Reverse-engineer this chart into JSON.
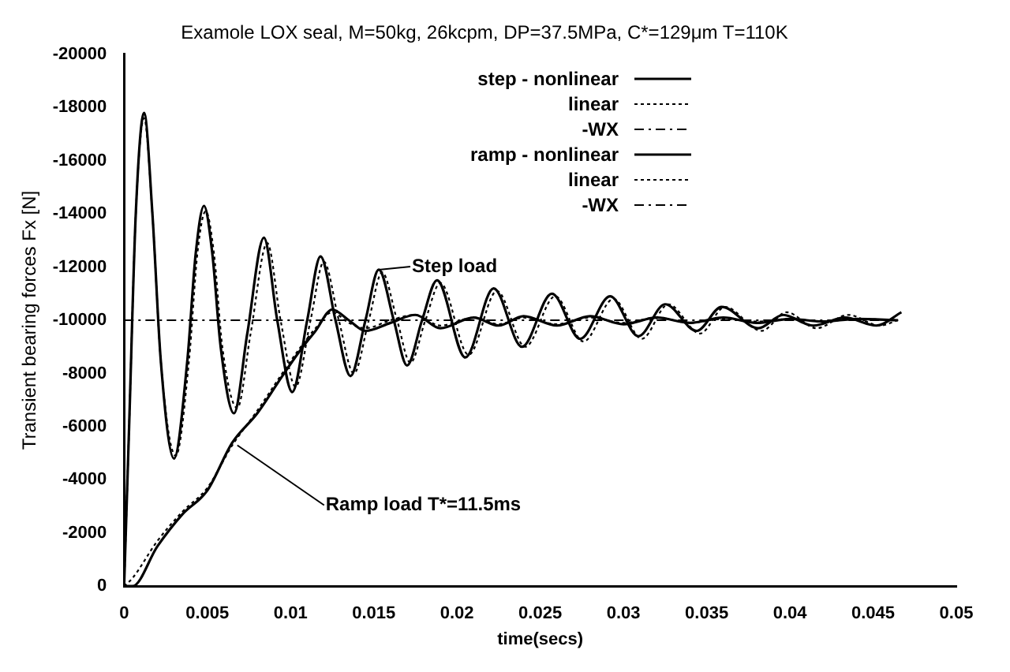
{
  "chart_data": {
    "type": "line",
    "title": "Examole LOX seal, M=50kg, 26kcpm, DP=37.5MPa, C*=129μm T=110K",
    "xlabel": "time(secs)",
    "ylabel": "Transient bearing forces Fx [N]",
    "xlim": [
      0,
      0.05
    ],
    "xticks": [
      0,
      0.005,
      0.01,
      0.015,
      0.02,
      0.025,
      0.03,
      0.035,
      0.04,
      0.045,
      0.05
    ],
    "ylim": [
      0,
      -20000
    ],
    "yticks": [
      -20000,
      -18000,
      -16000,
      -14000,
      -12000,
      -10000,
      -8000,
      -6000,
      -4000,
      -2000,
      0
    ],
    "grid": false,
    "legend": "top right",
    "marker": "none",
    "annotations": [
      {
        "text": "Step load",
        "x": 0.0153,
        "y": -11900
      },
      {
        "text": "Ramp load T*=11.5ms",
        "x": 0.0068,
        "y": -5300
      }
    ],
    "series": [
      {
        "name": "step - nonlinear",
        "color": "#000000",
        "line_style": "solid",
        "x": [
          0,
          0.0003,
          0.0007,
          0.0012,
          0.0017,
          0.0022,
          0.003,
          0.0038,
          0.0043,
          0.0048,
          0.0053,
          0.0058,
          0.0066,
          0.0074,
          0.0084,
          0.0092,
          0.0101,
          0.011,
          0.0118,
          0.0127,
          0.0136,
          0.0145,
          0.0153,
          0.0162,
          0.017,
          0.0179,
          0.0188,
          0.0205,
          0.0222,
          0.0239,
          0.0257,
          0.0274,
          0.0292,
          0.0309,
          0.0325,
          0.0344,
          0.0359,
          0.0381,
          0.0396,
          0.0414,
          0.0433,
          0.0452,
          0.0467
        ],
        "values": [
          0,
          -6000,
          -14000,
          -17800,
          -14000,
          -8500,
          -4800,
          -8500,
          -12500,
          -14300,
          -12500,
          -9000,
          -6500,
          -9500,
          -13100,
          -10000,
          -7300,
          -10000,
          -12400,
          -10000,
          -7900,
          -10000,
          -11900,
          -10000,
          -8300,
          -10000,
          -11500,
          -8600,
          -11200,
          -9000,
          -11000,
          -9300,
          -10900,
          -9400,
          -10600,
          -9600,
          -10500,
          -9700,
          -10200,
          -9800,
          -10100,
          -9800,
          -10300
        ]
      },
      {
        "name": "linear",
        "color": "#000000",
        "line_style": "dotted",
        "x": [
          0,
          0.0003,
          0.0007,
          0.0012,
          0.0017,
          0.0022,
          0.0031,
          0.0039,
          0.0044,
          0.0049,
          0.0054,
          0.0059,
          0.0068,
          0.0076,
          0.0086,
          0.0094,
          0.0103,
          0.0112,
          0.012,
          0.0129,
          0.0138,
          0.0147,
          0.0155,
          0.0164,
          0.0172,
          0.0181,
          0.019,
          0.0207,
          0.0224,
          0.0241,
          0.0259,
          0.0276,
          0.0294,
          0.0311,
          0.0327,
          0.0346,
          0.0361,
          0.0383,
          0.0398,
          0.0416,
          0.0435,
          0.0454,
          0.0465
        ],
        "values": [
          0,
          -6000,
          -14000,
          -17600,
          -14000,
          -8500,
          -4900,
          -8500,
          -12500,
          -14100,
          -12500,
          -9000,
          -6700,
          -9500,
          -12900,
          -10000,
          -7500,
          -10000,
          -12200,
          -10000,
          -8000,
          -10000,
          -11800,
          -10000,
          -8400,
          -10000,
          -11400,
          -8700,
          -11100,
          -9000,
          -10900,
          -9200,
          -10800,
          -9300,
          -10600,
          -9500,
          -10500,
          -9600,
          -10300,
          -9700,
          -10200,
          -9800,
          -10000
        ]
      },
      {
        "name": "-WX",
        "color": "#000000",
        "line_style": "dashed",
        "x": [
          0,
          0.0465
        ],
        "values": [
          -10000,
          -10000
        ]
      },
      {
        "name": "ramp - nonlinear",
        "color": "#000000",
        "line_style": "solid",
        "x": [
          0,
          0.0005,
          0.002,
          0.0035,
          0.005,
          0.0065,
          0.008,
          0.0095,
          0.0105,
          0.0115,
          0.0125,
          0.0135,
          0.0145,
          0.016,
          0.0175,
          0.019,
          0.021,
          0.0225,
          0.024,
          0.026,
          0.028,
          0.03,
          0.032,
          0.034,
          0.036,
          0.038,
          0.04,
          0.042,
          0.044,
          0.0465
        ],
        "values": [
          0,
          0,
          -1500,
          -2700,
          -3600,
          -5400,
          -6500,
          -7900,
          -8800,
          -9600,
          -10400,
          -10000,
          -9600,
          -9900,
          -10200,
          -9700,
          -10100,
          -9800,
          -10150,
          -9800,
          -10150,
          -9850,
          -10100,
          -9900,
          -10100,
          -9900,
          -10050,
          -9950,
          -10050,
          -10000
        ]
      },
      {
        "name": "linear",
        "color": "#000000",
        "line_style": "dotted",
        "x": [
          0,
          0.0005,
          0.002,
          0.0035,
          0.005,
          0.0065,
          0.008,
          0.0095,
          0.0105,
          0.0115,
          0.0125,
          0.0135,
          0.0145,
          0.016,
          0.0175,
          0.019,
          0.021,
          0.0225,
          0.024,
          0.026,
          0.028,
          0.03,
          0.032,
          0.034,
          0.036,
          0.038,
          0.04,
          0.042,
          0.044,
          0.0465
        ],
        "values": [
          0,
          -300,
          -1700,
          -2800,
          -3700,
          -5300,
          -6600,
          -8000,
          -8900,
          -9700,
          -10300,
          -9900,
          -9700,
          -10000,
          -10200,
          -9800,
          -10100,
          -9850,
          -10100,
          -9850,
          -10100,
          -9900,
          -10100,
          -9900,
          -10050,
          -9950,
          -10050,
          -9950,
          -10050,
          -10000
        ]
      },
      {
        "name": "-WX",
        "color": "#000000",
        "line_style": "dashed",
        "values": [
          null
        ]
      }
    ]
  }
}
